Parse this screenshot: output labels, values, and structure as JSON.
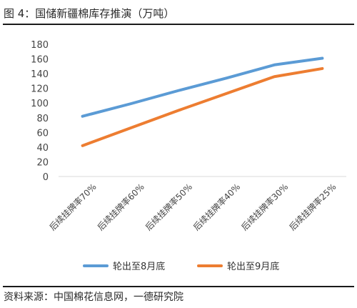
{
  "figure_title": "图 4：国储新疆棉库存推演（万吨）",
  "source": "资料来源：中国棉花信息网，一德研究院",
  "chart_data": {
    "type": "line",
    "categories": [
      "后续挂牌率70%",
      "后续挂牌率60%",
      "后续挂牌率50%",
      "后续挂牌率40%",
      "后续挂牌率30%",
      "后续挂牌率25%"
    ],
    "series": [
      {
        "name": "轮出至8月底",
        "color": "#5b9bd5",
        "values": [
          82,
          99,
          117,
          134,
          152,
          161
        ]
      },
      {
        "name": "轮出至9月底",
        "color": "#ed7d31",
        "values": [
          42,
          66,
          90,
          113,
          136,
          147
        ]
      }
    ],
    "ylim": [
      0,
      180
    ],
    "yticks": [
      0,
      20,
      40,
      60,
      80,
      100,
      120,
      140,
      160,
      180
    ],
    "grid": false,
    "legend": "bottom"
  }
}
